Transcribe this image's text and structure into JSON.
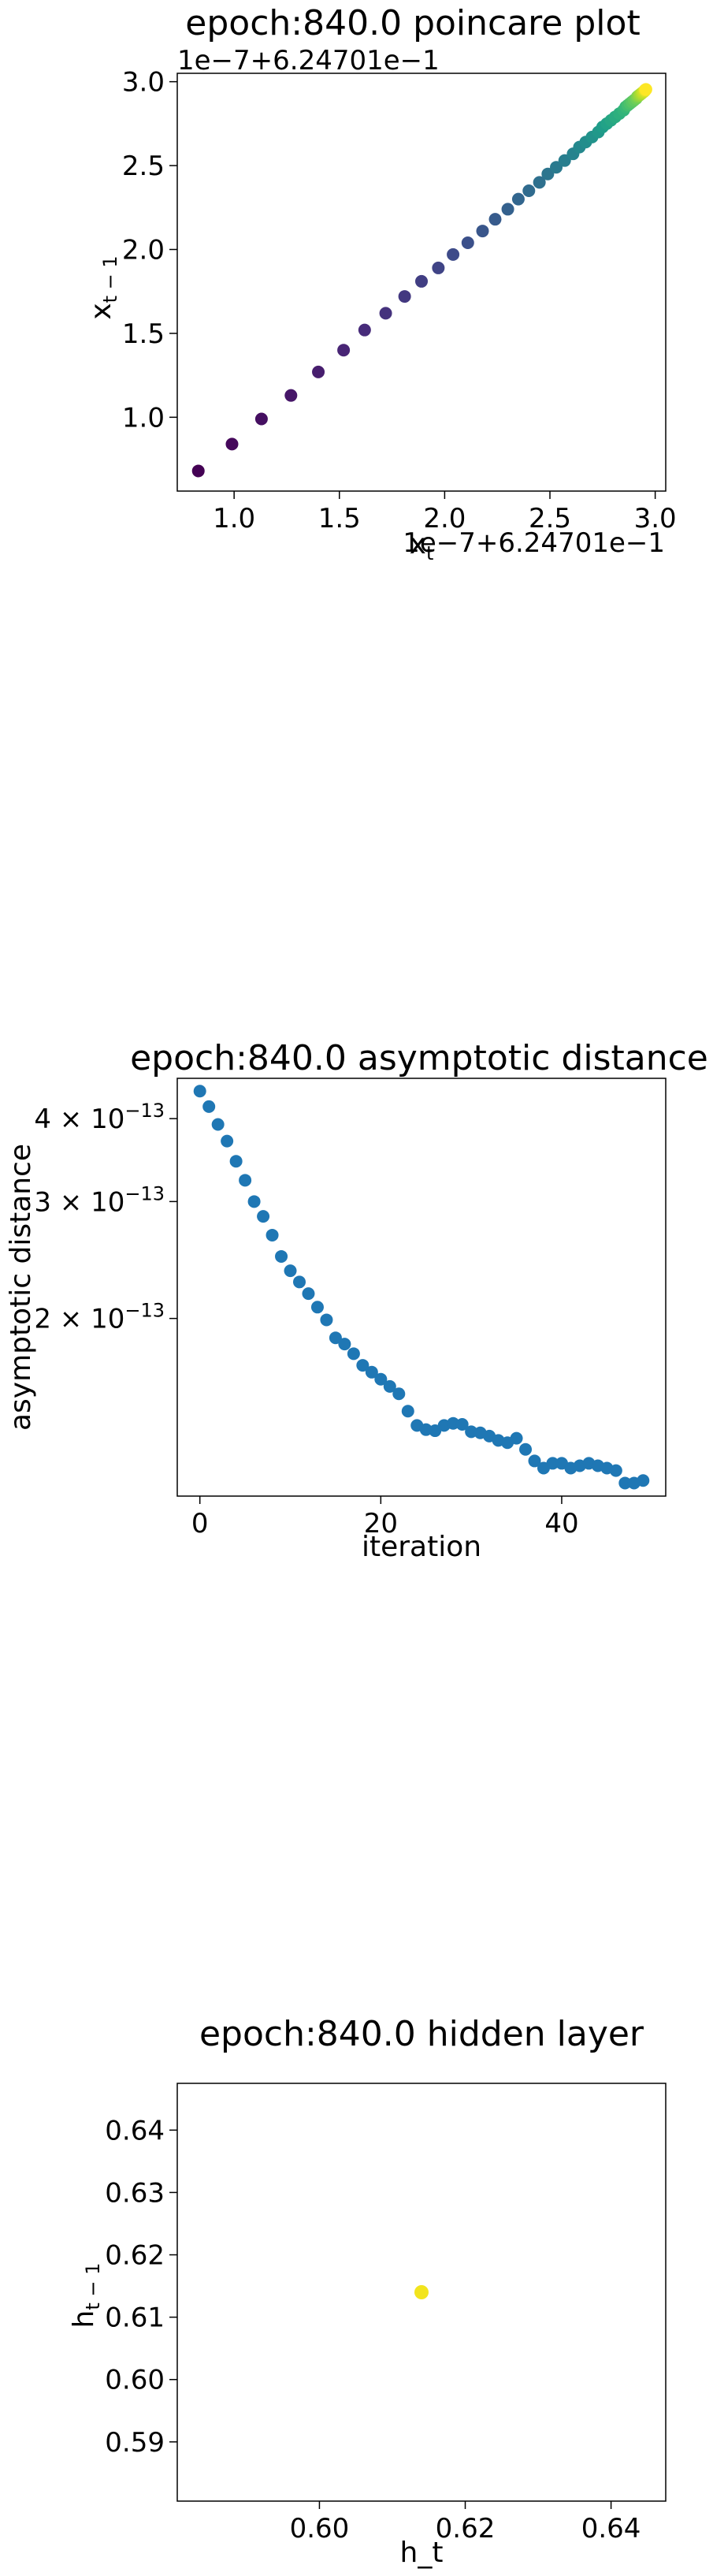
{
  "chart_data": [
    {
      "type": "scatter",
      "title": "epoch:840.0 poincare plot",
      "xlabel": "x_t",
      "ylabel": "x_{t-1}",
      "offset_label_x": "1e−7+6.24701e−1",
      "offset_label_y": "1e−7+6.24701e−1",
      "xlim": [
        0.73,
        3.05
      ],
      "ylim": [
        0.56,
        3.05
      ],
      "x_ticks": [
        "1.0",
        "1.5",
        "2.0",
        "2.5",
        "3.0"
      ],
      "y_ticks": [
        "1.0",
        "1.5",
        "2.0",
        "2.5",
        "3.0"
      ],
      "colormap": "viridis",
      "x": [
        0.83,
        0.99,
        1.13,
        1.27,
        1.4,
        1.52,
        1.62,
        1.72,
        1.81,
        1.89,
        1.97,
        2.04,
        2.11,
        2.18,
        2.24,
        2.3,
        2.35,
        2.4,
        2.45,
        2.49,
        2.53,
        2.57,
        2.61,
        2.64,
        2.67,
        2.7,
        2.73,
        2.75,
        2.77,
        2.79,
        2.81,
        2.83,
        2.85,
        2.86,
        2.87,
        2.88,
        2.89,
        2.9,
        2.91,
        2.915,
        2.92,
        2.925,
        2.93,
        2.935,
        2.94,
        2.945,
        2.95,
        2.952,
        2.954,
        2.956
      ],
      "y": [
        0.68,
        0.84,
        0.99,
        1.13,
        1.27,
        1.4,
        1.52,
        1.62,
        1.72,
        1.81,
        1.89,
        1.97,
        2.04,
        2.11,
        2.18,
        2.24,
        2.3,
        2.35,
        2.4,
        2.45,
        2.49,
        2.53,
        2.57,
        2.61,
        2.64,
        2.67,
        2.7,
        2.73,
        2.75,
        2.77,
        2.79,
        2.81,
        2.83,
        2.85,
        2.86,
        2.87,
        2.88,
        2.89,
        2.9,
        2.91,
        2.915,
        2.92,
        2.925,
        2.93,
        2.935,
        2.94,
        2.945,
        2.95,
        2.952,
        2.954
      ]
    },
    {
      "type": "scatter",
      "title": "epoch:840.0 asymptotic distance",
      "xlabel": "iteration",
      "ylabel": "asymptotic distance",
      "y_scale": "log",
      "xlim": [
        -2.5,
        51.5
      ],
      "ylim": [
        1.08e-13,
        4.6e-13
      ],
      "x_ticks": [
        0,
        20,
        40
      ],
      "y_ticks": [
        {
          "value": 4e-13,
          "mantissa": "4",
          "exponent": "−13"
        },
        {
          "value": 3e-13,
          "mantissa": "3",
          "exponent": "−13"
        },
        {
          "value": 2e-13,
          "mantissa": "2",
          "exponent": "−13"
        }
      ],
      "color": "#1f77b4",
      "x": [
        0,
        1,
        2,
        3,
        4,
        5,
        6,
        7,
        8,
        9,
        10,
        11,
        12,
        13,
        14,
        15,
        16,
        17,
        18,
        19,
        20,
        21,
        22,
        23,
        24,
        25,
        26,
        27,
        28,
        29,
        30,
        31,
        32,
        33,
        34,
        35,
        36,
        37,
        38,
        39,
        40,
        41,
        42,
        43,
        44,
        45,
        46,
        47,
        48,
        49
      ],
      "y": [
        4.4e-13,
        4.17e-13,
        3.92e-13,
        3.7e-13,
        3.45e-13,
        3.23e-13,
        3e-13,
        2.85e-13,
        2.67e-13,
        2.48e-13,
        2.36e-13,
        2.27e-13,
        2.18e-13,
        2.08e-13,
        1.99e-13,
        1.87e-13,
        1.83e-13,
        1.77e-13,
        1.7e-13,
        1.66e-13,
        1.62e-13,
        1.58e-13,
        1.54e-13,
        1.45e-13,
        1.38e-13,
        1.36e-13,
        1.355e-13,
        1.38e-13,
        1.39e-13,
        1.385e-13,
        1.35e-13,
        1.345e-13,
        1.33e-13,
        1.31e-13,
        1.3e-13,
        1.32e-13,
        1.27e-13,
        1.22e-13,
        1.19e-13,
        1.21e-13,
        1.21e-13,
        1.19e-13,
        1.2e-13,
        1.21e-13,
        1.2e-13,
        1.19e-13,
        1.18e-13,
        1.13e-13,
        1.13e-13,
        1.14e-13
      ]
    },
    {
      "type": "scatter",
      "title": "epoch:840.0 hidden layer",
      "xlabel": "h_t",
      "ylabel": "h_{t-1}",
      "xlim": [
        0.5805,
        0.6475
      ],
      "ylim": [
        0.5805,
        0.6475
      ],
      "x_ticks": [
        "0.60",
        "0.62",
        "0.64"
      ],
      "y_ticks": [
        "0.59",
        "0.60",
        "0.61",
        "0.62",
        "0.63",
        "0.64"
      ],
      "color": "#f2e41d",
      "x": [
        0.614
      ],
      "y": [
        0.614
      ]
    }
  ]
}
